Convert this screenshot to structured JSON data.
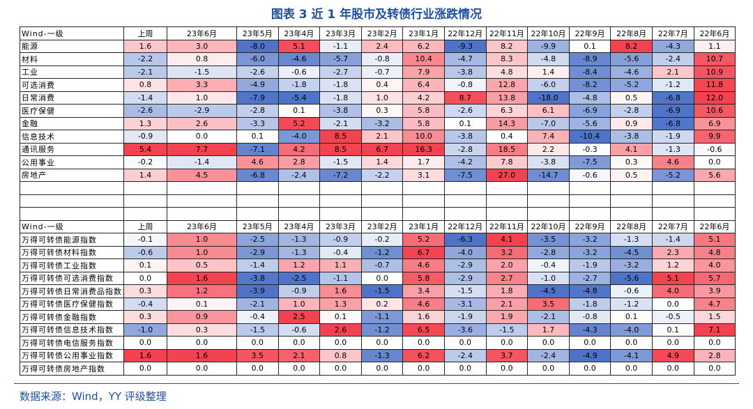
{
  "title": "图表 3  近 1 年股市及转债行业涨跌情况",
  "tables": [
    {
      "header": [
        "Wind-一级",
        "上周",
        "23年6月",
        "23年5月",
        "23年4月",
        "23年3月",
        "23年2月",
        "23年1月",
        "22年12月",
        "22年11月",
        "22年10月",
        "22年9月",
        "22年8月",
        "22年7月",
        "22年6月"
      ],
      "rows": [
        [
          "能源",
          "1.6",
          "3.0",
          "-8.0",
          "5.1",
          "-1.1",
          "2.4",
          "6.2",
          "-9.3",
          "8.2",
          "-9.9",
          "0.1",
          "8.2",
          "-4.3",
          "1.1"
        ],
        [
          "材料",
          "-2.2",
          "0.8",
          "-6.0",
          "-4.6",
          "-5.7",
          "-0.8",
          "10.4",
          "-4.7",
          "8.3",
          "-4.8",
          "-8.9",
          "-5.6",
          "-2.4",
          "10.7"
        ],
        [
          "工业",
          "-2.1",
          "-1.5",
          "-2.6",
          "-0.6",
          "-2.7",
          "-0.7",
          "7.9",
          "-3.8",
          "4.8",
          "1.4",
          "-8.4",
          "-4.6",
          "2.1",
          "10.9"
        ],
        [
          "可选消费",
          "0.8",
          "3.3",
          "-4.9",
          "-1.8",
          "-1.8",
          "0.4",
          "6.4",
          "-0.8",
          "12.8",
          "-6.0",
          "-8.2",
          "-5.2",
          "-1.2",
          "11.8"
        ],
        [
          "日常消费",
          "-1.4",
          "1.0",
          "-7.9",
          "-5.4",
          "-1.8",
          "1.0",
          "4.2",
          "8.7",
          "13.8",
          "-18.0",
          "-4.8",
          "0.5",
          "-6.8",
          "12.0"
        ],
        [
          "医疗保健",
          "-2.6",
          "-2.9",
          "-2.8",
          "0.1",
          "-3.8",
          "0.3",
          "5.8",
          "-2.6",
          "6.3",
          "6.1",
          "-6.9",
          "-2.8",
          "-6.9",
          "10.6"
        ],
        [
          "金融",
          "1.3",
          "2.6",
          "-3.3",
          "5.2",
          "-2.1",
          "-3.2",
          "5.8",
          "0.1",
          "14.3",
          "-7.0",
          "-5.6",
          "0.9",
          "-6.8",
          "6.9"
        ],
        [
          "信息技术",
          "-0.9",
          "0.0",
          "0.1",
          "-4.0",
          "8.5",
          "2.1",
          "10.0",
          "-3.8",
          "0.4",
          "7.4",
          "-10.4",
          "-3.8",
          "-1.9",
          "9.9"
        ],
        [
          "通讯服务",
          "5.4",
          "7.7",
          "-7.1",
          "4.2",
          "8.5",
          "6.7",
          "16.3",
          "-2.8",
          "18.5",
          "2.2",
          "-0.3",
          "4.1",
          "-1.3",
          "-0.6"
        ],
        [
          "公用事业",
          "-0.2",
          "-1.4",
          "4.6",
          "2.8",
          "-1.5",
          "1.4",
          "1.7",
          "-4.2",
          "7.8",
          "-3.8",
          "-7.5",
          "0.3",
          "4.6",
          "0.0"
        ],
        [
          "房地产",
          "1.4",
          "4.5",
          "-6.8",
          "-2.4",
          "-7.2",
          "-2.2",
          "3.1",
          "-7.5",
          "27.0",
          "-14.7",
          "-0.6",
          "0.5",
          "-5.2",
          "5.6"
        ]
      ]
    },
    {
      "header": [
        "Wind-一级",
        "上周",
        "23年6月",
        "23年5月",
        "23年4月",
        "23年3月",
        "23年2月",
        "23年1月",
        "22年12月",
        "22年11月",
        "22年10月",
        "22年9月",
        "22年8月",
        "22年7月",
        "22年6月"
      ],
      "rows": [
        [
          "万得可转债能源指数",
          "-0.1",
          "1.0",
          "-2.5",
          "-1.3",
          "-0.9",
          "-0.2",
          "5.2",
          "-6.3",
          "4.1",
          "-3.5",
          "-3.2",
          "-1.3",
          "-1.4",
          "5.1"
        ],
        [
          "万得可转债材料指数",
          "-0.6",
          "1.0",
          "-2.9",
          "-1.3",
          "-0.4",
          "-1.2",
          "6.7",
          "-4.0",
          "3.2",
          "-2.8",
          "-3.2",
          "-4.5",
          "2.3",
          "4.8"
        ],
        [
          "万得可转债工业指数",
          "0.1",
          "0.5",
          "-1.4",
          "1.2",
          "1.1",
          "-0.7",
          "4.6",
          "-2.9",
          "2.0",
          "-0.4",
          "-1.9",
          "-3.2",
          "1.2",
          "4.0"
        ],
        [
          "万得可转债可选消费指数",
          "0.0",
          "1.6",
          "-3.8",
          "-2.5",
          "-1.1",
          "0.0",
          "5.8",
          "-2.9",
          "2.7",
          "-1.0",
          "-2.7",
          "-5.6",
          "5.1",
          "5.7"
        ],
        [
          "万得可转债日常消费品指数",
          "0.3",
          "1.2",
          "-3.9",
          "-0.9",
          "1.6",
          "-1.5",
          "3.4",
          "-1.5",
          "1.8",
          "-4.5",
          "-4.8",
          "-0.6",
          "4.0",
          "3.9"
        ],
        [
          "万得可转债医疗保健指数",
          "-0.4",
          "0.1",
          "-2.1",
          "1.0",
          "1.3",
          "0.2",
          "4.6",
          "-3.1",
          "2.1",
          "3.5",
          "-1.8",
          "-1.2",
          "0.0",
          "4.7"
        ],
        [
          "万得可转债金融指数",
          "0.3",
          "0.9",
          "-0.4",
          "2.5",
          "0.1",
          "-1.1",
          "1.6",
          "-1.9",
          "1.9",
          "-2.1",
          "-0.8",
          "0.1",
          "-0.5",
          "1.5"
        ],
        [
          "万得可转债信息技术指数",
          "-1.0",
          "0.3",
          "-1.5",
          "-0.6",
          "2.6",
          "-1.2",
          "6.5",
          "-3.6",
          "-1.5",
          "1.7",
          "-4.3",
          "-4.0",
          "0.1",
          "7.1"
        ],
        [
          "万得可转债电信服务指数",
          "0.0",
          "0.0",
          "0.0",
          "0.0",
          "0.0",
          "0.0",
          "0.0",
          "0.0",
          "0.0",
          "0.0",
          "0.0",
          "0.0",
          "0.0",
          "0.0"
        ],
        [
          "万得可转债公用事业指数",
          "1.6",
          "1.6",
          "3.5",
          "2.1",
          "0.8",
          "-1.3",
          "6.2",
          "-2.4",
          "3.7",
          "-2.4",
          "-4.9",
          "-4.1",
          "4.9",
          "2.8"
        ],
        [
          "万得可转债房地产指数",
          "0.0",
          "0.0",
          "0.0",
          "0.0",
          "0.0",
          "0.0",
          "0.0",
          "0.0",
          "0.0",
          "0.0",
          "0.0",
          "0.0",
          "0.0",
          "0.0"
        ]
      ]
    }
  ],
  "source": "数据来源：Wind，YY 评级整理"
}
